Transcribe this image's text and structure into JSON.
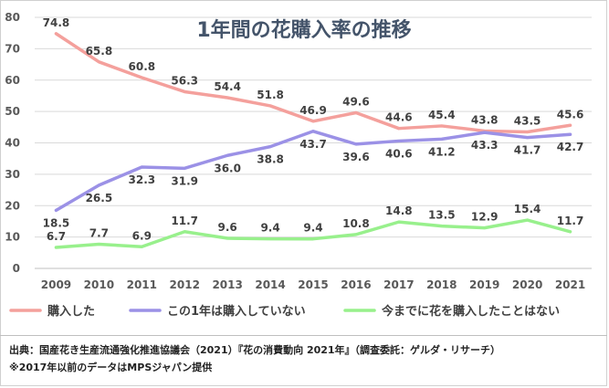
{
  "chart_data": {
    "type": "line",
    "title": "1年間の花購入率の推移",
    "categories": [
      "2009",
      "2010",
      "2011",
      "2012",
      "2013",
      "2014",
      "2015",
      "2016",
      "2017",
      "2018",
      "2019",
      "2020",
      "2021"
    ],
    "ylim": [
      0,
      80
    ],
    "yticks": [
      0,
      10,
      20,
      30,
      40,
      50,
      60,
      70,
      80
    ],
    "grid": true,
    "legend": "bottom",
    "series": [
      {
        "name": "購入した",
        "color": "#f4a09c",
        "labels": "above",
        "values": [
          74.8,
          65.8,
          60.8,
          56.3,
          54.4,
          51.8,
          46.9,
          49.6,
          44.6,
          45.4,
          43.8,
          43.5,
          45.6
        ]
      },
      {
        "name": "この1年は購入していない",
        "color": "#9b91e6",
        "labels": "below",
        "values": [
          18.5,
          26.5,
          32.3,
          31.9,
          36.0,
          38.8,
          43.7,
          39.6,
          40.6,
          41.2,
          43.3,
          41.7,
          42.7
        ]
      },
      {
        "name": "今までに花を購入したことはない",
        "color": "#98f08c",
        "labels": "above",
        "values": [
          6.7,
          7.7,
          6.9,
          11.7,
          9.6,
          9.4,
          9.4,
          10.8,
          14.8,
          13.5,
          12.9,
          15.4,
          11.7
        ]
      }
    ]
  },
  "footer": {
    "source": "出典：国産花き生産流通強化推進協議会（2021）『花の消費動向 2021年』（調査委託：ゲルダ・リサーチ）",
    "note": "※2017年以前のデータはMPSジャパン提供"
  }
}
